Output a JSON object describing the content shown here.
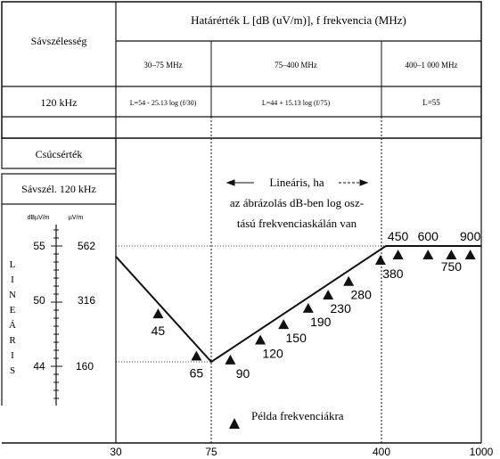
{
  "table": {
    "header_title": "Határérték L [dB (uV/m)], f frekvencia (MHz)",
    "bandwidth_label": "Sávszélesség",
    "bandwidth_value": "120 kHz",
    "bands": [
      {
        "range": "30–75 MHz",
        "formula": "L=54 - 25.13 log (f/30)"
      },
      {
        "range": "75–400 MHz",
        "formula": "L=44 + 15.13 log (f/75)"
      },
      {
        "range": "400–1 000 MHz",
        "formula": "L=55"
      }
    ]
  },
  "left_panel": {
    "peak_label": "Csúcsérték",
    "peak_bw_label": "Sávszél. 120 kHz",
    "unit_db": "dBµV/m",
    "unit_uv": "µV/m",
    "db_ticks": [
      "55",
      "50",
      "44"
    ],
    "uv_ticks": [
      "562",
      "316",
      "160"
    ],
    "vertical_word": [
      "L",
      "I",
      "N",
      "E",
      "Á",
      "R",
      "I",
      "S"
    ]
  },
  "chart": {
    "linear_note_line1": "Lineáris, ha",
    "linear_note_line2": "az ábrázolás dB-ben log osz-",
    "linear_note_line3": "tású frekvenciaskálán van",
    "example_label": "Példa frekvenciákra",
    "x_ticks": [
      "30",
      "75",
      "400",
      "1000"
    ]
  },
  "chart_data": {
    "type": "line",
    "x_scale": "log",
    "xlim": [
      30,
      1000
    ],
    "ylim": [
      42.5,
      57
    ],
    "limit_line": [
      {
        "f": 30,
        "L": 54
      },
      {
        "f": 75,
        "L": 44
      },
      {
        "f": 400,
        "L": 55
      },
      {
        "f": 1000,
        "L": 55
      }
    ],
    "example_frequencies": [
      {
        "label": "45",
        "f": 45
      },
      {
        "label": "65",
        "f": 65
      },
      {
        "label": "90",
        "f": 90
      },
      {
        "label": "120",
        "f": 120
      },
      {
        "label": "150",
        "f": 150
      },
      {
        "label": "190",
        "f": 190
      },
      {
        "label": "230",
        "f": 230
      },
      {
        "label": "280",
        "f": 280
      },
      {
        "label": "380",
        "f": 380
      },
      {
        "label": "450",
        "f": 450
      },
      {
        "label": "600",
        "f": 600
      },
      {
        "label": "750",
        "f": 750
      },
      {
        "label": "900",
        "f": 900
      }
    ]
  }
}
